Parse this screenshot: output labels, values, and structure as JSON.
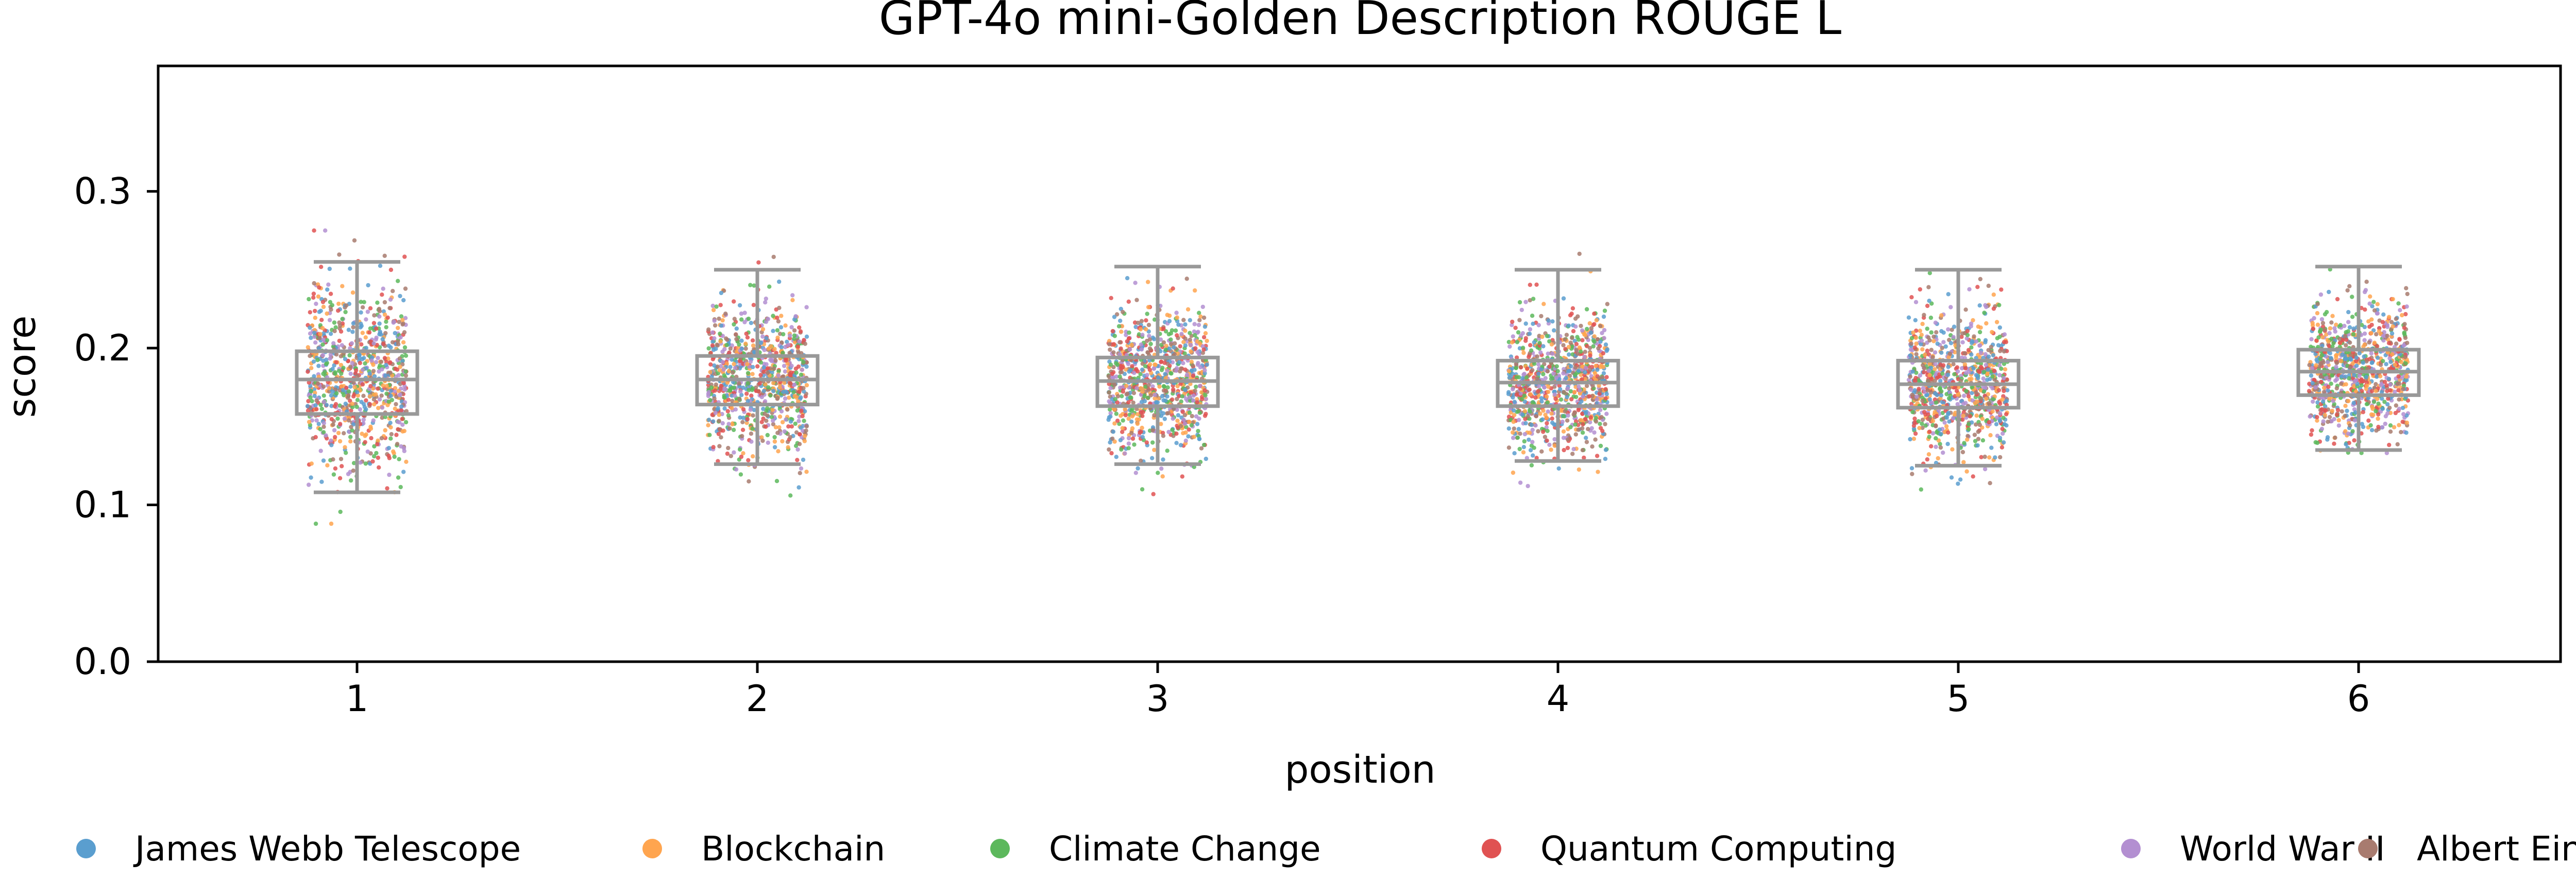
{
  "chart_data": {
    "type": "box-strip",
    "title": "GPT-4o mini-Golden Description ROUGE L",
    "xlabel": "position",
    "ylabel": "score",
    "categories": [
      "1",
      "2",
      "3",
      "4",
      "5",
      "6"
    ],
    "ylim": [
      0,
      0.38
    ],
    "yticks": [
      0.0,
      0.1,
      0.2,
      0.3
    ],
    "ytick_labels": [
      "0.0",
      "0.1",
      "0.2",
      "0.3"
    ],
    "grid": false,
    "legend_placement": "bottom",
    "box_color": "#999999",
    "boxes": [
      {
        "category": "1",
        "whisker_low": 0.108,
        "q1": 0.158,
        "median": 0.18,
        "q3": 0.198,
        "whisker_high": 0.255
      },
      {
        "category": "2",
        "whisker_low": 0.126,
        "q1": 0.164,
        "median": 0.18,
        "q3": 0.195,
        "whisker_high": 0.25
      },
      {
        "category": "3",
        "whisker_low": 0.126,
        "q1": 0.163,
        "median": 0.179,
        "q3": 0.194,
        "whisker_high": 0.252
      },
      {
        "category": "4",
        "whisker_low": 0.128,
        "q1": 0.163,
        "median": 0.178,
        "q3": 0.192,
        "whisker_high": 0.25
      },
      {
        "category": "5",
        "whisker_low": 0.125,
        "q1": 0.162,
        "median": 0.177,
        "q3": 0.192,
        "whisker_high": 0.25
      },
      {
        "category": "6",
        "whisker_low": 0.135,
        "q1": 0.17,
        "median": 0.185,
        "q3": 0.199,
        "whisker_high": 0.252
      }
    ],
    "series": [
      {
        "name": "James Webb Telescope",
        "color": "#5a9ecf"
      },
      {
        "name": "Blockchain",
        "color": "#ffa54f"
      },
      {
        "name": "Climate Change",
        "color": "#5cb85c"
      },
      {
        "name": "Quantum Computing",
        "color": "#e05252"
      },
      {
        "name": "World War II",
        "color": "#b38fd1"
      },
      {
        "name": "Albert Einstein",
        "color": "#a87b6f"
      }
    ]
  }
}
